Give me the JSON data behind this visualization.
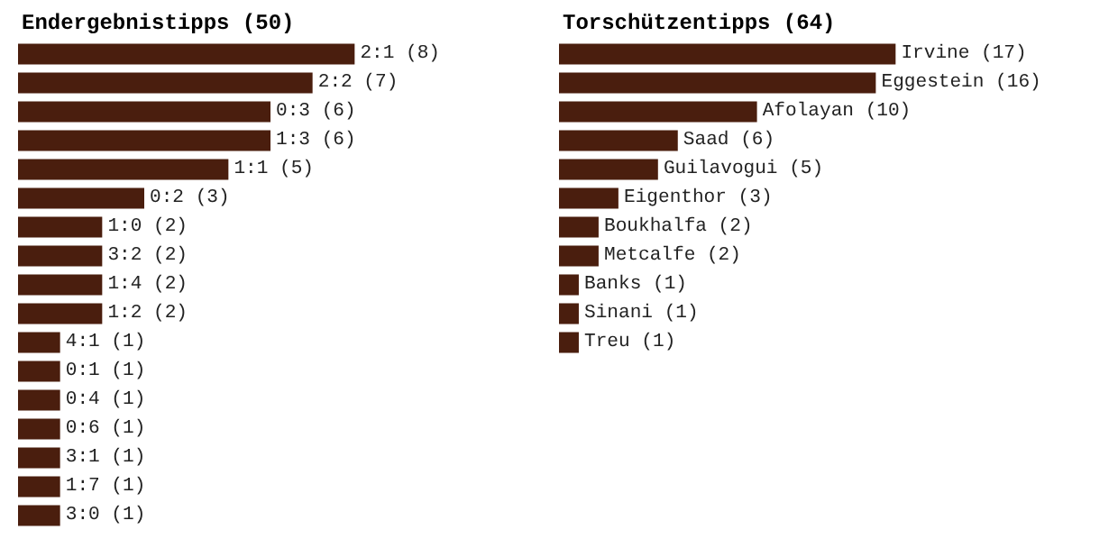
{
  "chart_data": [
    {
      "type": "bar",
      "orientation": "horizontal",
      "title": "Endergebnistipps (50)",
      "categories": [
        null,
        null,
        null,
        null,
        null,
        null,
        null,
        null,
        null,
        null,
        null,
        null,
        null,
        null,
        null,
        null,
        null
      ],
      "values": [
        8,
        7,
        6,
        6,
        5,
        3,
        2,
        2,
        2,
        2,
        1,
        1,
        1,
        1,
        1,
        1,
        1
      ],
      "color": "#4a1e0e",
      "value_labels": [
        "2:1 (8)",
        "2:2 (7)",
        "0:3 (6)",
        "1:3 (6)",
        "1:1 (5)",
        "0:2 (3)",
        "1:0 (2)",
        "3:2 (2)",
        "1:4 (2)",
        "1:2 (2)",
        "4:1 (1)",
        "0:1 (1)",
        "0:4 (1)",
        "0:6 (1)",
        "3:1 (1)",
        "1:7 (1)",
        "3:0 (1)"
      ],
      "tick_labels": false
    },
    {
      "type": "bar",
      "orientation": "horizontal",
      "title": "Torschützentipps (64)",
      "categories": [
        null,
        null,
        null,
        null,
        null,
        null,
        null,
        null,
        null,
        null,
        null
      ],
      "values": [
        17,
        16,
        10,
        6,
        5,
        3,
        2,
        2,
        1,
        1,
        1
      ],
      "color": "#4a1e0e",
      "value_labels": [
        "Irvine (17)",
        "Eggestein (16)",
        "Afolayan (10)",
        "Saad (6)",
        "Guilavogui (5)",
        "Eigenthor (3)",
        "Boukhalfa (2)",
        "Metcalfe (2)",
        "Banks (1)",
        "Sinani (1)",
        "Treu (1)"
      ],
      "tick_labels": false
    }
  ]
}
